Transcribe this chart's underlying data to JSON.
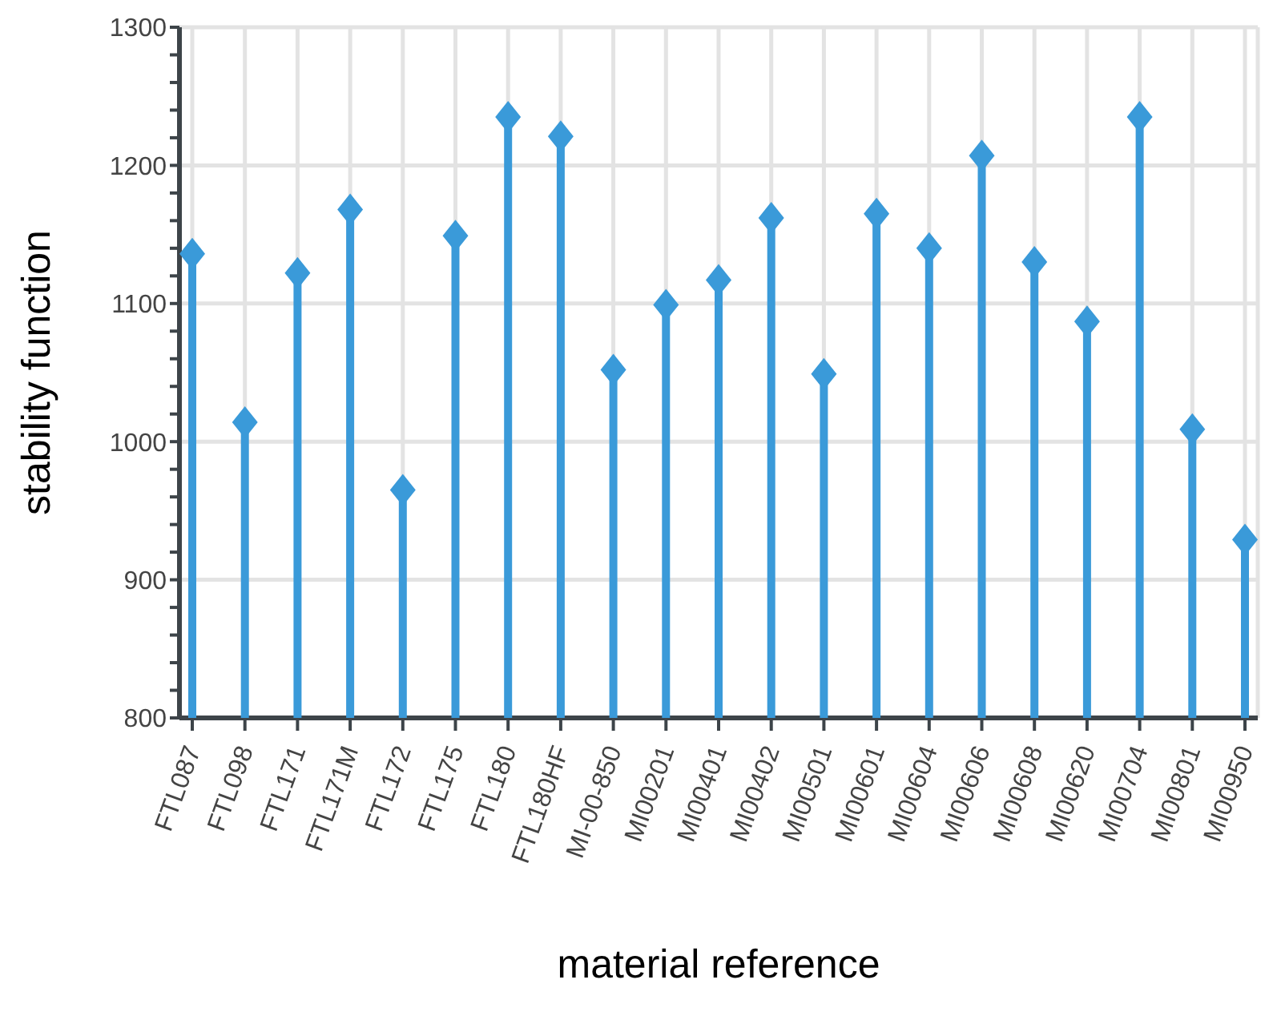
{
  "chart_data": {
    "type": "lollipop",
    "xlabel": "material reference",
    "ylabel": "stability function",
    "categories": [
      "FTL087",
      "FTL098",
      "FTL171",
      "FTL171M",
      "FTL172",
      "FTL175",
      "FTL180",
      "FTL180HF",
      "MI-00-850",
      "MI00201",
      "MI00401",
      "MI00402",
      "MI00501",
      "MI00601",
      "MI00604",
      "MI00606",
      "MI00608",
      "MI00620",
      "MI00704",
      "MI00801",
      "MI00950"
    ],
    "values": [
      1136,
      1014,
      1122,
      1168,
      965,
      1149,
      1235,
      1221,
      1052,
      1099,
      1117,
      1162,
      1049,
      1165,
      1140,
      1207,
      1130,
      1087,
      1235,
      1009,
      929
    ],
    "color": "#3a9ad9",
    "marker": "diamond",
    "grid": true,
    "ylim": [
      800,
      1300
    ],
    "yticks": [
      800,
      {
        "value": 820,
        "label": null
      },
      {
        "value": 840,
        "label": null
      },
      {
        "value": 860,
        "label": null
      },
      {
        "value": 880,
        "label": null
      },
      900,
      {
        "value": 920,
        "label": null
      },
      {
        "value": 940,
        "label": null
      },
      {
        "value": 960,
        "label": null
      },
      {
        "value": 980,
        "label": null
      },
      1000,
      {
        "value": 1020,
        "label": null
      },
      {
        "value": 1040,
        "label": null
      },
      {
        "value": 1060,
        "label": null
      },
      {
        "value": 1080,
        "label": null
      },
      1100,
      {
        "value": 1120,
        "label": null
      },
      {
        "value": 1140,
        "label": null
      },
      {
        "value": 1160,
        "label": null
      },
      {
        "value": 1180,
        "label": null
      },
      1200,
      {
        "value": 1220,
        "label": null
      },
      {
        "value": 1240,
        "label": null
      },
      {
        "value": 1260,
        "label": null
      },
      {
        "value": 1280,
        "label": null
      },
      1300
    ]
  }
}
